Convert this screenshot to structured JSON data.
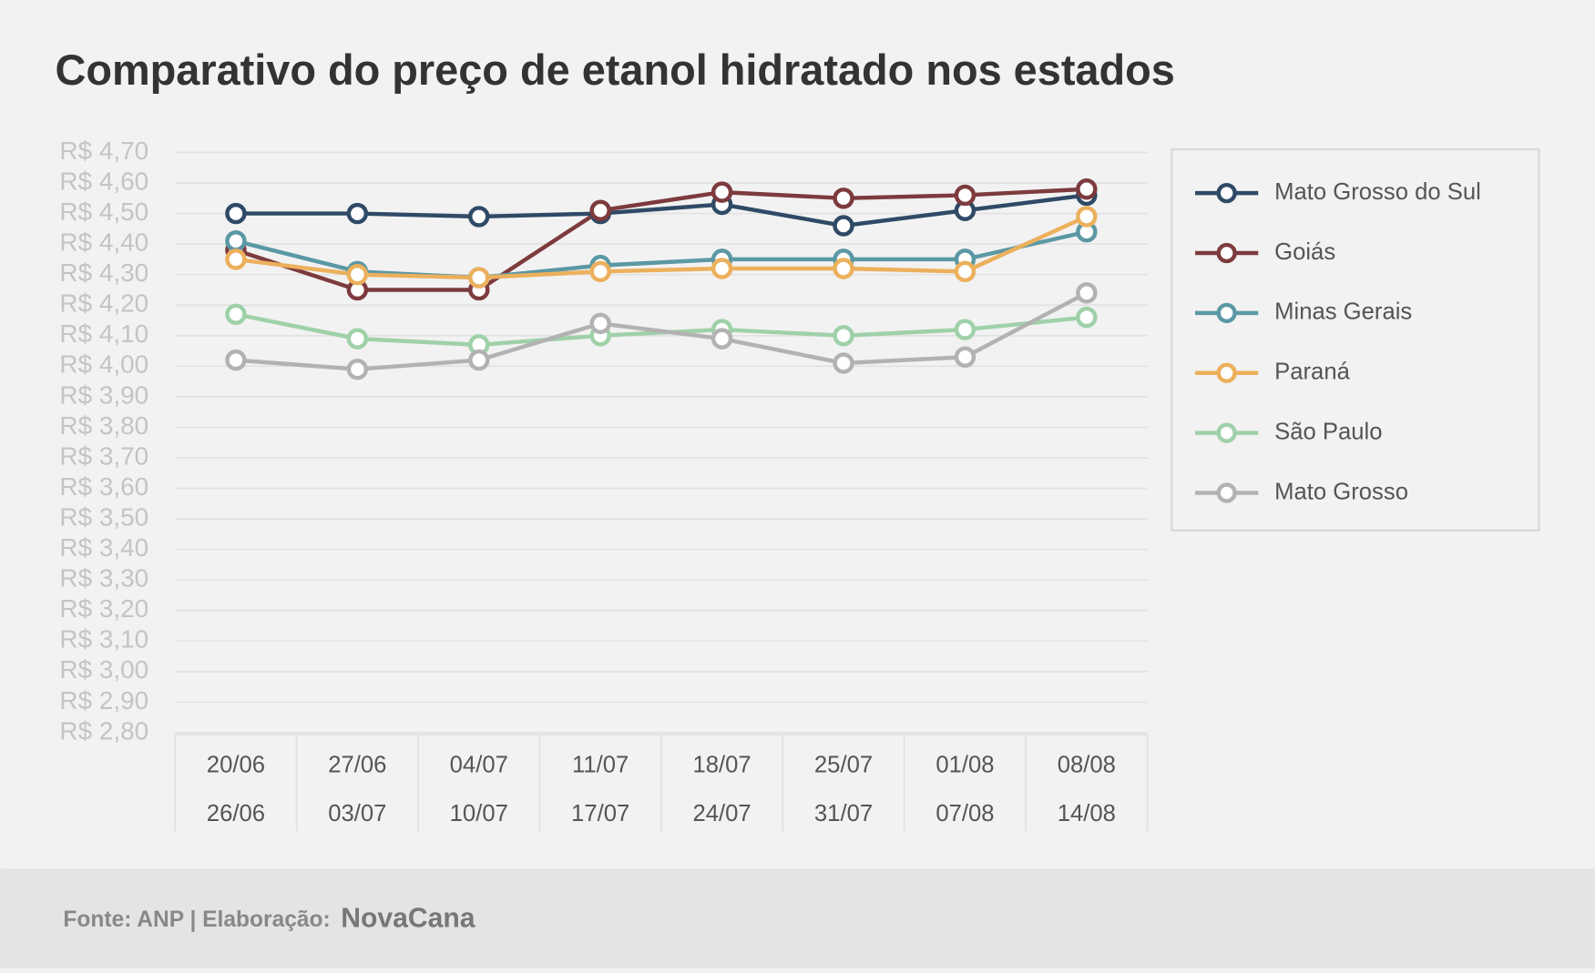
{
  "chart_data": {
    "type": "line",
    "title": "Comparativo do preço de etanol hidratado nos estados",
    "categories": [
      [
        "20/06",
        "26/06"
      ],
      [
        "27/06",
        "03/07"
      ],
      [
        "04/07",
        "10/07"
      ],
      [
        "11/07",
        "17/07"
      ],
      [
        "18/07",
        "24/07"
      ],
      [
        "25/07",
        "31/07"
      ],
      [
        "01/08",
        "07/08"
      ],
      [
        "08/08",
        "14/08"
      ]
    ],
    "series": [
      {
        "name": "Mato Grosso do Sul",
        "color": "#2f4a66",
        "values": [
          4.5,
          4.5,
          4.49,
          4.5,
          4.53,
          4.46,
          4.51,
          4.56
        ]
      },
      {
        "name": "Goiás",
        "color": "#7d3b3d",
        "values": [
          4.38,
          4.25,
          4.25,
          4.51,
          4.57,
          4.55,
          4.56,
          4.58
        ]
      },
      {
        "name": "Minas Gerais",
        "color": "#5b98a4",
        "values": [
          4.41,
          4.31,
          4.29,
          4.33,
          4.35,
          4.35,
          4.35,
          4.44
        ]
      },
      {
        "name": "Paraná",
        "color": "#ecb05c",
        "values": [
          4.35,
          4.3,
          4.29,
          4.31,
          4.32,
          4.32,
          4.31,
          4.49
        ]
      },
      {
        "name": "São Paulo",
        "color": "#9fd1a9",
        "values": [
          4.17,
          4.09,
          4.07,
          4.1,
          4.12,
          4.1,
          4.12,
          4.16
        ]
      },
      {
        "name": "Mato Grosso",
        "color": "#b2b2b2",
        "values": [
          4.02,
          3.99,
          4.02,
          4.14,
          4.09,
          4.01,
          4.03,
          4.24
        ]
      }
    ],
    "ylim": [
      2.8,
      4.7
    ],
    "yticks": [
      {
        "value": 2.8,
        "label": "R$ 2,80"
      },
      {
        "value": 2.9,
        "label": "R$ 2,90"
      },
      {
        "value": 3.0,
        "label": "R$ 3,00"
      },
      {
        "value": 3.1,
        "label": "R$ 3,10"
      },
      {
        "value": 3.2,
        "label": "R$ 3,20"
      },
      {
        "value": 3.3,
        "label": "R$ 3,30"
      },
      {
        "value": 3.4,
        "label": "R$ 3,40"
      },
      {
        "value": 3.5,
        "label": "R$ 3,50"
      },
      {
        "value": 3.6,
        "label": "R$ 3,60"
      },
      {
        "value": 3.7,
        "label": "R$ 3,70"
      },
      {
        "value": 3.8,
        "label": "R$ 3,80"
      },
      {
        "value": 3.9,
        "label": "R$ 3,90"
      },
      {
        "value": 4.0,
        "label": "R$ 4,00"
      },
      {
        "value": 4.1,
        "label": "R$ 4,10"
      },
      {
        "value": 4.2,
        "label": "R$ 4,20"
      },
      {
        "value": 4.3,
        "label": "R$ 4,30"
      },
      {
        "value": 4.4,
        "label": "R$ 4,40"
      },
      {
        "value": 4.5,
        "label": "R$ 4,50"
      },
      {
        "value": 4.6,
        "label": "R$ 4,60"
      },
      {
        "value": 4.7,
        "label": "R$ 4,70"
      }
    ],
    "grid": true,
    "legend": "right",
    "source": "Fonte: ANP | Elaboração:",
    "brand": "NovaCana"
  }
}
